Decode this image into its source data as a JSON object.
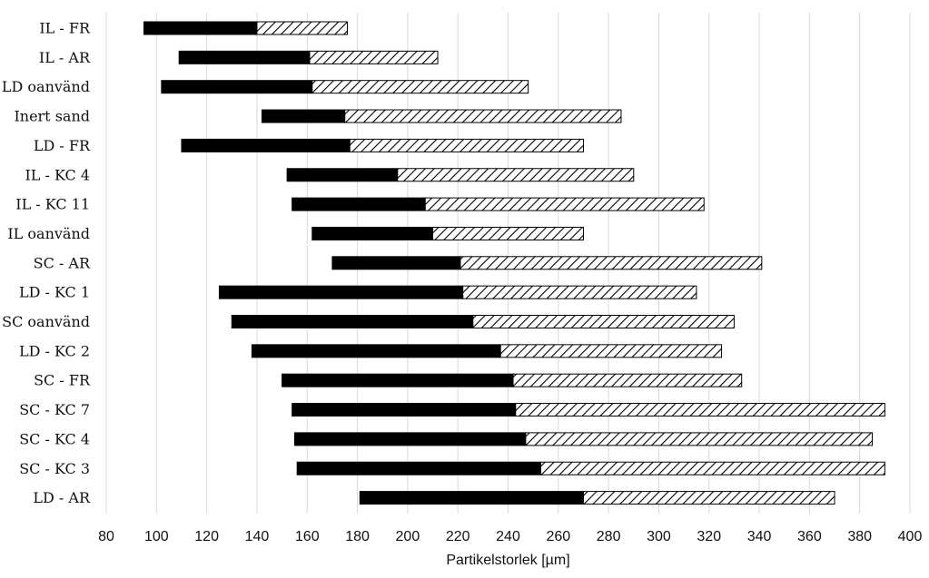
{
  "chart_data": {
    "type": "bar",
    "orientation": "horizontal",
    "stacked": true,
    "xlabel": "Partikelstorlek [µm]",
    "xlim": [
      80,
      400
    ],
    "xticks": [
      80,
      100,
      120,
      140,
      160,
      180,
      200,
      220,
      240,
      260,
      280,
      300,
      320,
      340,
      360,
      380,
      400
    ],
    "grid": "vertical",
    "legend": "none",
    "categories": [
      "IL - FR",
      "IL - AR",
      "LD oanvänd",
      "Inert sand",
      "LD - FR",
      "IL - KC 4",
      "IL - KC 11",
      "IL oanvänd",
      "SC - AR",
      "LD - KC 1",
      "SC oanvänd",
      "LD - KC 2",
      "SC - FR",
      "SC - KC 7",
      "SC - KC 4",
      "SC - KC 3",
      "LD - AR"
    ],
    "series": [
      {
        "style": "solid",
        "color": "#000000",
        "ranges": [
          [
            95,
            140
          ],
          [
            109,
            161
          ],
          [
            102,
            162
          ],
          [
            142,
            175
          ],
          [
            110,
            177
          ],
          [
            152,
            196
          ],
          [
            154,
            207
          ],
          [
            162,
            210
          ],
          [
            170,
            221
          ],
          [
            125,
            222
          ],
          [
            130,
            226
          ],
          [
            138,
            237
          ],
          [
            150,
            242
          ],
          [
            154,
            243
          ],
          [
            155,
            247
          ],
          [
            156,
            253
          ],
          [
            181,
            270
          ]
        ]
      },
      {
        "style": "hatched",
        "color": "#000000",
        "ranges": [
          [
            140,
            176
          ],
          [
            161,
            212
          ],
          [
            162,
            248
          ],
          [
            175,
            285
          ],
          [
            177,
            270
          ],
          [
            196,
            290
          ],
          [
            207,
            318
          ],
          [
            210,
            270
          ],
          [
            221,
            341
          ],
          [
            222,
            315
          ],
          [
            226,
            330
          ],
          [
            237,
            325
          ],
          [
            242,
            333
          ],
          [
            243,
            390
          ],
          [
            247,
            385
          ],
          [
            253,
            390
          ],
          [
            270,
            370
          ]
        ]
      }
    ]
  }
}
